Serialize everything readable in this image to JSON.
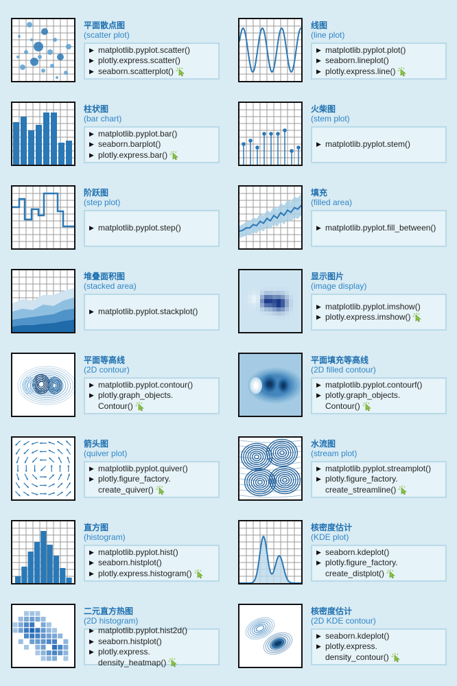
{
  "cards": [
    {
      "zh": "平面散点图",
      "en": "(scatter plot)",
      "lines": [
        {
          "text": "matplotlib.pyplot.scatter()",
          "bullet": true,
          "interactive": false
        },
        {
          "text": "plotly.express.scatter()",
          "bullet": true,
          "interactive": false
        },
        {
          "text": "seaborn.scatterplot()",
          "bullet": true,
          "interactive": true
        }
      ]
    },
    {
      "zh": "线图",
      "en": "(line plot)",
      "lines": [
        {
          "text": "matplotlib.pyplot.plot()",
          "bullet": true,
          "interactive": false
        },
        {
          "text": "seaborn.lineplot()",
          "bullet": true,
          "interactive": false
        },
        {
          "text": "plotly.express.line()",
          "bullet": true,
          "interactive": true
        }
      ]
    },
    {
      "zh": "柱状图",
      "en": "(bar chart)",
      "lines": [
        {
          "text": "matplotlib.pyplot.bar()",
          "bullet": true,
          "interactive": false
        },
        {
          "text": "seaborn.barplot()",
          "bullet": true,
          "interactive": false
        },
        {
          "text": "plotly.express.bar()",
          "bullet": true,
          "interactive": true
        }
      ]
    },
    {
      "zh": "火柴图",
      "en": "(stem plot)",
      "lines": [
        {
          "text": "matplotlib.pyplot.stem()",
          "bullet": true,
          "interactive": false
        }
      ]
    },
    {
      "zh": "阶跃图",
      "en": "(step plot)",
      "lines": [
        {
          "text": "matplotlib.pyplot.step()",
          "bullet": true,
          "interactive": false
        }
      ]
    },
    {
      "zh": "填充",
      "en": "(filled area)",
      "lines": [
        {
          "text": "matplotlib.pyplot.fill_between()",
          "bullet": true,
          "interactive": false
        }
      ]
    },
    {
      "zh": "堆叠面积图",
      "en": "(stacked area)",
      "lines": [
        {
          "text": "matplotlib.pyplot.stackplot()",
          "bullet": true,
          "interactive": false
        }
      ]
    },
    {
      "zh": "显示图片",
      "en": "(image display)",
      "lines": [
        {
          "text": "matplotlib.pyplot.imshow()",
          "bullet": true,
          "interactive": false
        },
        {
          "text": "plotly.express.imshow()",
          "bullet": true,
          "interactive": true
        }
      ]
    },
    {
      "zh": "平面等高线",
      "en": "(2D contour)",
      "lines": [
        {
          "text": "matplotlib.pyplot.contour()",
          "bullet": true,
          "interactive": false
        },
        {
          "text": "plotly.graph_objects.",
          "bullet": true,
          "interactive": false
        },
        {
          "text": "Contour()",
          "bullet": false,
          "interactive": true
        }
      ]
    },
    {
      "zh": "平面填充等高线",
      "en": "(2D filled contour)",
      "lines": [
        {
          "text": "matplotlib.pyplot.contourf()",
          "bullet": true,
          "interactive": false
        },
        {
          "text": "plotly.graph_objects.",
          "bullet": true,
          "interactive": false
        },
        {
          "text": "Contour()",
          "bullet": false,
          "interactive": true
        }
      ]
    },
    {
      "zh": "箭头图",
      "en": "(quiver plot)",
      "lines": [
        {
          "text": "matplotlib.pyplot.quiver()",
          "bullet": true,
          "interactive": false
        },
        {
          "text": "plotly.figure_factory.",
          "bullet": true,
          "interactive": false
        },
        {
          "text": "create_quiver()",
          "bullet": false,
          "interactive": true
        }
      ]
    },
    {
      "zh": "水流图",
      "en": "(stream plot)",
      "lines": [
        {
          "text": "matplotlib.pyplot.streamplot()",
          "bullet": true,
          "interactive": false
        },
        {
          "text": "plotly.figure_factory.",
          "bullet": true,
          "interactive": false
        },
        {
          "text": "create_streamline()",
          "bullet": false,
          "interactive": true
        }
      ]
    },
    {
      "zh": "直方图",
      "en": "(histogram)",
      "lines": [
        {
          "text": "matplotlib.pyplot.hist()",
          "bullet": true,
          "interactive": false
        },
        {
          "text": "seaborn.histplot()",
          "bullet": true,
          "interactive": false
        },
        {
          "text": "plotly.express.histogram()",
          "bullet": true,
          "interactive": true
        }
      ]
    },
    {
      "zh": "核密度估计",
      "en": "(KDE plot)",
      "lines": [
        {
          "text": "seaborn.kdeplot()",
          "bullet": true,
          "interactive": false
        },
        {
          "text": "plotly.figure_factory.",
          "bullet": true,
          "interactive": false
        },
        {
          "text": "create_distplot()",
          "bullet": false,
          "interactive": true
        }
      ]
    },
    {
      "zh": "二元直方热图",
      "en": "(2D histogram)",
      "lines": [
        {
          "text": "matplotlib.pyplot.hist2d()",
          "bullet": true,
          "interactive": false
        },
        {
          "text": "seaborn.histplot()",
          "bullet": true,
          "interactive": false
        },
        {
          "text": "plotly.express.",
          "bullet": true,
          "interactive": false
        },
        {
          "text": "density_heatmap()",
          "bullet": false,
          "interactive": true
        }
      ]
    },
    {
      "zh": "核密度估计",
      "en": "(2D KDE contour)",
      "lines": [
        {
          "text": "seaborn.kdeplot()",
          "bullet": true,
          "interactive": false
        },
        {
          "text": "plotly.express.",
          "bullet": true,
          "interactive": false
        },
        {
          "text": "density_contour()",
          "bullet": false,
          "interactive": true
        }
      ]
    }
  ],
  "colors": {
    "title": "#1d6fb0",
    "subtitle": "#2f86c8",
    "plot_blue": "#2a78b6",
    "plot_light": "#a9cfe6",
    "box_bg": "#e6f3f8",
    "box_border": "#b8dae8",
    "interactive_icon": "#8cc63f"
  }
}
